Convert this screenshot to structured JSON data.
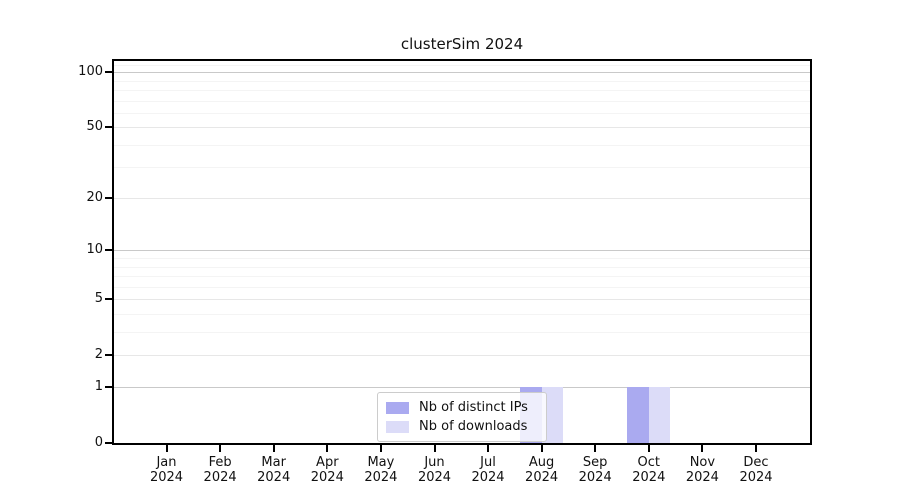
{
  "chart_data": {
    "type": "bar",
    "title": "clusterSim 2024",
    "xlabel": "",
    "ylabel": "",
    "yscale": "log1p",
    "ylim": [
      0,
      115
    ],
    "grid": true,
    "legend_position": "bottom-center-inside",
    "categories": [
      {
        "month": "Jan",
        "year": "2024"
      },
      {
        "month": "Feb",
        "year": "2024"
      },
      {
        "month": "Mar",
        "year": "2024"
      },
      {
        "month": "Apr",
        "year": "2024"
      },
      {
        "month": "May",
        "year": "2024"
      },
      {
        "month": "Jun",
        "year": "2024"
      },
      {
        "month": "Jul",
        "year": "2024"
      },
      {
        "month": "Aug",
        "year": "2024"
      },
      {
        "month": "Sep",
        "year": "2024"
      },
      {
        "month": "Oct",
        "year": "2024"
      },
      {
        "month": "Nov",
        "year": "2024"
      },
      {
        "month": "Dec",
        "year": "2024"
      }
    ],
    "series": [
      {
        "name": "Nb of distinct IPs",
        "color": "#aaaaf0",
        "values": [
          0,
          0,
          0,
          0,
          0,
          0,
          0,
          1,
          0,
          1,
          0,
          0
        ]
      },
      {
        "name": "Nb of downloads",
        "color": "#dcdcf8",
        "values": [
          0,
          0,
          0,
          0,
          0,
          0,
          0,
          1,
          0,
          1,
          0,
          0
        ]
      }
    ],
    "yticks": [
      0,
      1,
      2,
      5,
      10,
      20,
      50,
      100
    ],
    "minor_yticks": [
      3,
      4,
      6,
      7,
      8,
      9,
      30,
      40,
      60,
      70,
      80,
      90,
      110
    ],
    "decade_yticks": [
      1,
      10,
      100
    ]
  },
  "colors": {
    "axis": "#000000",
    "grid_minor": "#f4f4f4",
    "grid_major": "#e7e7e7",
    "grid_decade": "#c9c9c9",
    "background": "#ffffff"
  }
}
